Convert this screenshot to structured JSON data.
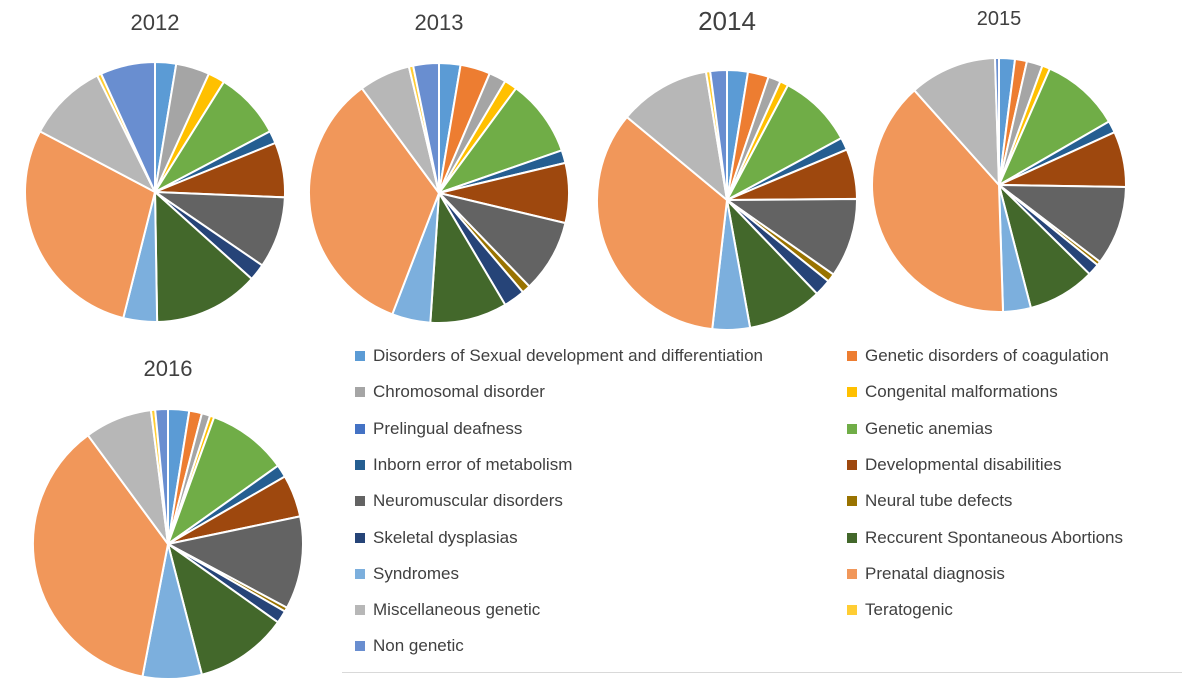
{
  "chart_data": [
    {
      "type": "pie",
      "title": "2012",
      "categories": [
        "Disorders of Sexual development and differentiation",
        "Genetic disorders of coagulation",
        "Chromosomal disorder",
        "Congenital malformations",
        "Prelingual deafness",
        "Genetic anemias",
        "Inborn error of metabolism",
        "Developmental disabilities",
        "Neuromuscular disorders",
        "Neural tube defects",
        "Skeletal dysplasias",
        "Reccurent Spontaneous Abortions",
        "Syndromes",
        "Prenatal diagnosis",
        "Miscellaneous genetic",
        "Teratogenic",
        "Non genetic"
      ],
      "values": [
        2.5,
        0,
        4,
        2,
        0,
        8,
        1.5,
        6.5,
        8.5,
        0,
        2,
        12.5,
        4,
        27.5,
        9.5,
        0.5,
        6.5
      ]
    },
    {
      "type": "pie",
      "title": "2013",
      "categories": [
        "Disorders of Sexual development and differentiation",
        "Genetic disorders of coagulation",
        "Chromosomal disorder",
        "Congenital malformations",
        "Prelingual deafness",
        "Genetic anemias",
        "Inborn error of metabolism",
        "Developmental disabilities",
        "Neuromuscular disorders",
        "Neural tube defects",
        "Skeletal dysplasias",
        "Reccurent Spontaneous Abortions",
        "Syndromes",
        "Prenatal diagnosis",
        "Miscellaneous genetic",
        "Teratogenic",
        "Non genetic"
      ],
      "values": [
        2.5,
        3.5,
        2,
        1.5,
        0,
        9,
        1.5,
        7,
        8.5,
        1,
        2.5,
        9,
        4.5,
        32,
        6,
        0.5,
        3
      ]
    },
    {
      "type": "pie",
      "title": "2014",
      "categories": [
        "Disorders of Sexual development and differentiation",
        "Genetic disorders of coagulation",
        "Chromosomal disorder",
        "Congenital malformations",
        "Prelingual deafness",
        "Genetic anemias",
        "Inborn error of metabolism",
        "Developmental disabilities",
        "Neuromuscular disorders",
        "Neural tube defects",
        "Skeletal dysplasias",
        "Reccurent Spontaneous Abortions",
        "Syndromes",
        "Prenatal diagnosis",
        "Miscellaneous genetic",
        "Teratogenic",
        "Non genetic"
      ],
      "values": [
        2.5,
        2.5,
        1.5,
        1,
        0,
        9,
        1.5,
        6,
        9.5,
        1,
        2,
        9,
        4.5,
        33,
        11,
        0.5,
        2
      ]
    },
    {
      "type": "pie",
      "title": "2015",
      "categories": [
        "Disorders of Sexual development and differentiation",
        "Genetic disorders of coagulation",
        "Chromosomal disorder",
        "Congenital malformations",
        "Prelingual deafness",
        "Genetic anemias",
        "Inborn error of metabolism",
        "Developmental disabilities",
        "Neuromuscular disorders",
        "Neural tube defects",
        "Skeletal dysplasias",
        "Reccurent Spontaneous Abortions",
        "Syndromes",
        "Prenatal diagnosis",
        "Miscellaneous genetic",
        "Teratogenic",
        "Non genetic"
      ],
      "values": [
        2,
        1.5,
        2,
        1,
        0,
        10,
        1.5,
        7,
        10,
        0.5,
        1.5,
        8.5,
        3.5,
        38.5,
        11,
        0,
        0.5
      ]
    },
    {
      "type": "pie",
      "title": "2016",
      "categories": [
        "Disorders of Sexual development and differentiation",
        "Genetic disorders of coagulation",
        "Chromosomal disorder",
        "Congenital malformations",
        "Prelingual deafness",
        "Genetic anemias",
        "Inborn error of metabolism",
        "Developmental disabilities",
        "Neuromuscular disorders",
        "Neural tube defects",
        "Skeletal dysplasias",
        "Reccurent Spontaneous Abortions",
        "Syndromes",
        "Prenatal diagnosis",
        "Miscellaneous genetic",
        "Teratogenic",
        "Non genetic"
      ],
      "values": [
        2.5,
        1.5,
        1,
        0.5,
        0,
        9.5,
        1.5,
        5,
        11,
        0.5,
        1.5,
        11,
        7,
        36.5,
        8,
        0.5,
        1.5
      ]
    }
  ],
  "legend": [
    {
      "label": "Disorders of Sexual development and differentiation",
      "color": "#5B9BD5"
    },
    {
      "label": "Genetic disorders of coagulation",
      "color": "#ED7D31"
    },
    {
      "label": "Chromosomal disorder",
      "color": "#A5A5A5"
    },
    {
      "label": "Congenital malformations",
      "color": "#FFC000"
    },
    {
      "label": "Prelingual deafness",
      "color": "#4472C4"
    },
    {
      "label": "Genetic anemias",
      "color": "#70AD47"
    },
    {
      "label": "Inborn error of metabolism",
      "color": "#255E91"
    },
    {
      "label": "Developmental disabilities",
      "color": "#9E480E"
    },
    {
      "label": "Neuromuscular disorders",
      "color": "#636363"
    },
    {
      "label": "Neural tube defects",
      "color": "#997300"
    },
    {
      "label": "Skeletal dysplasias",
      "color": "#264478"
    },
    {
      "label": "Reccurent Spontaneous Abortions",
      "color": "#43682B"
    },
    {
      "label": "Syndromes",
      "color": "#7CAFDD"
    },
    {
      "label": "Prenatal diagnosis",
      "color": "#F1975A"
    },
    {
      "label": "Miscellaneous genetic",
      "color": "#B7B7B7"
    },
    {
      "label": "Teratogenic",
      "color": "#FFCD33"
    },
    {
      "label": "Non genetic",
      "color": "#698ED0"
    }
  ]
}
